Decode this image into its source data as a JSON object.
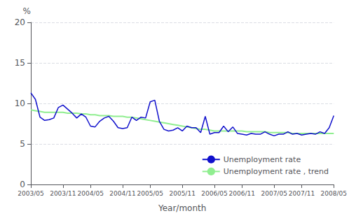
{
  "chart_data": {
    "type": "line",
    "xlabel": "Year/month",
    "ylabel": "%",
    "categories": [
      "2003/05",
      null,
      null,
      null,
      null,
      null,
      null,
      "2003/11",
      null,
      null,
      null,
      null,
      null,
      "2004/05",
      null,
      null,
      null,
      null,
      null,
      null,
      "2004/11",
      null,
      null,
      null,
      null,
      null,
      "2005/05",
      null,
      null,
      null,
      null,
      null,
      null,
      "2005/11",
      null,
      null,
      null,
      null,
      null,
      null,
      "2006/05",
      null,
      null,
      null,
      null,
      null,
      "2006/11",
      null,
      null,
      null,
      null,
      null,
      null,
      "2007/05",
      null,
      null,
      null,
      null,
      null,
      "2007/11",
      null,
      null,
      null,
      null,
      null,
      null,
      "2008/05"
    ],
    "series": [
      {
        "name": "Unemployment rate",
        "color": "#1010cc",
        "values": [
          11.3,
          10.5,
          8.3,
          7.9,
          8.0,
          8.2,
          9.5,
          9.8,
          9.3,
          8.8,
          8.2,
          8.7,
          8.3,
          7.2,
          7.1,
          7.8,
          8.2,
          8.4,
          7.8,
          7.0,
          6.9,
          7.0,
          8.3,
          7.9,
          8.3,
          8.2,
          10.2,
          10.4,
          7.8,
          6.8,
          6.6,
          6.7,
          7.0,
          6.6,
          7.2,
          7.0,
          7.0,
          6.4,
          8.4,
          6.2,
          6.4,
          6.4,
          7.2,
          6.5,
          7.1,
          6.3,
          6.2,
          6.1,
          6.3,
          6.2,
          6.2,
          6.5,
          6.2,
          6.0,
          6.2,
          6.2,
          6.5,
          6.2,
          6.3,
          6.1,
          6.2,
          6.3,
          6.2,
          6.5,
          6.3,
          7.0,
          8.5
        ]
      },
      {
        "name": "Unemployment rate , trend",
        "color": "#90ee90",
        "values": [
          9.2,
          9.1,
          9.0,
          8.9,
          8.9,
          8.9,
          8.9,
          8.9,
          8.8,
          8.8,
          8.8,
          8.7,
          8.7,
          8.6,
          8.6,
          8.5,
          8.5,
          8.5,
          8.4,
          8.4,
          8.4,
          8.3,
          8.3,
          8.2,
          8.1,
          8.0,
          7.9,
          7.8,
          7.7,
          7.6,
          7.5,
          7.4,
          7.3,
          7.2,
          7.1,
          7.0,
          6.9,
          6.8,
          6.8,
          6.7,
          6.6,
          6.6,
          6.6,
          6.6,
          6.6,
          6.6,
          6.6,
          6.5,
          6.5,
          6.5,
          6.5,
          6.5,
          6.4,
          6.4,
          6.4,
          6.4,
          6.4,
          6.3,
          6.3,
          6.3,
          6.3,
          6.3,
          6.3,
          6.3,
          6.3,
          6.3,
          6.3
        ]
      }
    ],
    "ylim": [
      0,
      20
    ],
    "yticks": [
      0,
      5,
      10,
      15,
      20
    ],
    "grid": true,
    "legend": "lower right"
  }
}
